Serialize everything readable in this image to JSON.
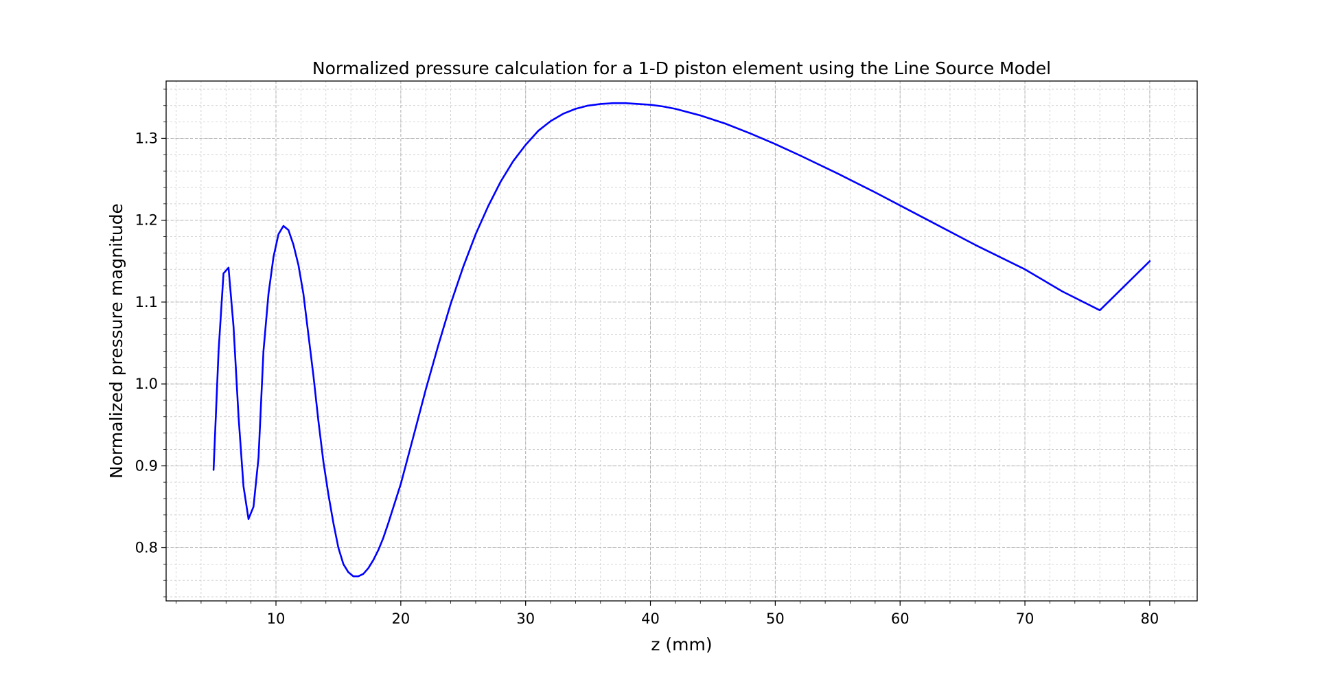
{
  "chart_data": {
    "type": "line",
    "title": "Normalized pressure calculation for a 1-D piston element using the Line Source Model",
    "xlabel": "z (mm)",
    "ylabel": "Normalized pressure magnitude",
    "xlim": [
      1.2,
      83.8
    ],
    "ylim": [
      0.735,
      1.37
    ],
    "xticks": [
      10,
      20,
      30,
      40,
      50,
      60,
      70,
      80
    ],
    "xtick_labels": [
      "10",
      "20",
      "30",
      "40",
      "50",
      "60",
      "70",
      "80"
    ],
    "yticks": [
      0.8,
      0.9,
      1.0,
      1.1,
      1.2,
      1.3
    ],
    "ytick_labels": [
      "0.8",
      "0.9",
      "1.0",
      "1.1",
      "1.2",
      "1.3"
    ],
    "x_minor_step": 2,
    "y_minor_step": 0.02,
    "grid": true,
    "series": [
      {
        "color": "#0000ff",
        "x": [
          5.0,
          5.4,
          5.8,
          6.2,
          6.6,
          7.0,
          7.4,
          7.8,
          8.2,
          8.6,
          9.0,
          9.4,
          9.8,
          10.2,
          10.6,
          11.0,
          11.4,
          11.8,
          12.2,
          12.6,
          13.0,
          13.4,
          13.8,
          14.2,
          14.6,
          15.0,
          15.4,
          15.8,
          16.2,
          16.6,
          17.0,
          17.4,
          17.8,
          18.2,
          18.6,
          19.0,
          20.0,
          21.0,
          22.0,
          23.0,
          24.0,
          25.0,
          26.0,
          27.0,
          28.0,
          29.0,
          30.0,
          31.0,
          32.0,
          33.0,
          34.0,
          35.0,
          36.0,
          37.0,
          38.0,
          39.0,
          40.0,
          41.0,
          42.0,
          44.0,
          46.0,
          48.0,
          50.0,
          52.0,
          55.0,
          58.0,
          60.0,
          63.0,
          66.0,
          70.0,
          73.0,
          76.0,
          80.0
        ],
        "y": [
          0.895,
          1.04,
          1.135,
          1.142,
          1.07,
          0.96,
          0.875,
          0.835,
          0.85,
          0.91,
          1.04,
          1.11,
          1.155,
          1.183,
          1.193,
          1.188,
          1.17,
          1.145,
          1.11,
          1.06,
          1.01,
          0.955,
          0.905,
          0.865,
          0.83,
          0.8,
          0.78,
          0.77,
          0.765,
          0.765,
          0.768,
          0.775,
          0.785,
          0.797,
          0.812,
          0.83,
          0.878,
          0.935,
          0.993,
          1.047,
          1.098,
          1.143,
          1.183,
          1.217,
          1.247,
          1.272,
          1.292,
          1.309,
          1.321,
          1.33,
          1.336,
          1.34,
          1.342,
          1.343,
          1.343,
          1.342,
          1.341,
          1.339,
          1.336,
          1.328,
          1.318,
          1.306,
          1.293,
          1.279,
          1.257,
          1.234,
          1.218,
          1.194,
          1.17,
          1.14,
          1.113,
          1.09,
          1.15
        ]
      }
    ]
  }
}
